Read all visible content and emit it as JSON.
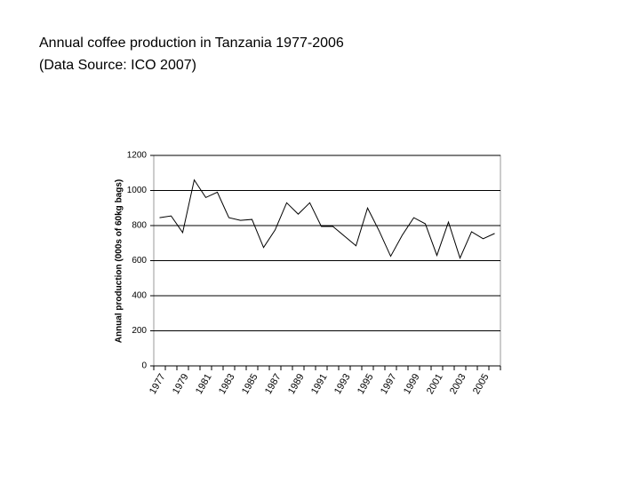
{
  "chart_data": {
    "type": "line",
    "title": "Annual coffee production in Tanzania 1977-2006",
    "subtitle": "(Data Source: ICO 2007)",
    "y_label": "Annual production (000s of 60kg bags)",
    "categories": [
      "1977",
      null,
      "1979",
      null,
      "1981",
      null,
      "1983",
      null,
      "1985",
      null,
      "1987",
      null,
      "1989",
      null,
      "1991",
      null,
      "1993",
      null,
      "1995",
      null,
      "1997",
      null,
      "1999",
      null,
      "2001",
      null,
      "2003",
      null,
      "2005",
      null
    ],
    "series": [
      {
        "name": "Annual production",
        "color": "#000000",
        "values": [
          845,
          855,
          760,
          1060,
          960,
          990,
          845,
          830,
          835,
          675,
          775,
          930,
          865,
          930,
          795,
          795,
          740,
          685,
          900,
          770,
          625,
          745,
          845,
          810,
          630,
          820,
          615,
          765,
          725,
          755
        ]
      }
    ],
    "ylim": [
      0,
      1200
    ],
    "yticks": [
      0,
      200,
      400,
      600,
      800,
      1000,
      1200
    ],
    "grid": true
  }
}
